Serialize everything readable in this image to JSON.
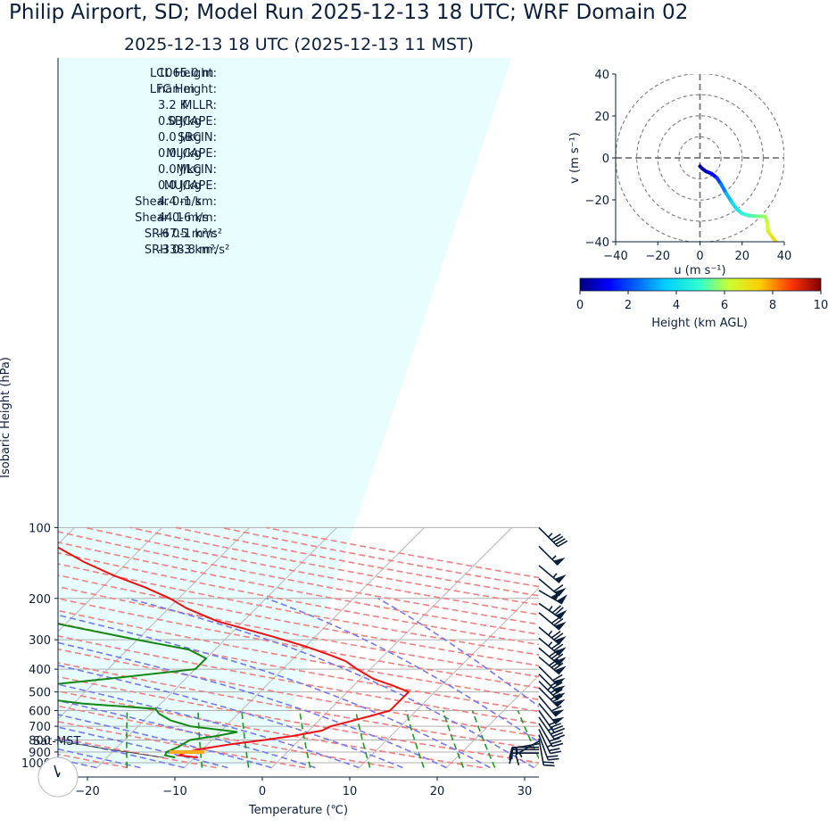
{
  "title": "Philip Airport, SD; Model Run 2025-12-13 18 UTC; WRF Domain 02",
  "subtitle": "2025-12-13 18 UTC  (2025-12-13 11 MST)",
  "xlabel": "Temperature (℃)",
  "ylabel": "Isobaric Height (hPa)",
  "stats": [
    {
      "label": "LCL Height:",
      "value": "1065.0 m"
    },
    {
      "label": "LFC Height:",
      "value": "nan m"
    },
    {
      "label": "MLLR:",
      "value": "3.2 K"
    },
    {
      "label": "SBCAPE:",
      "value": "0.0 J/kg"
    },
    {
      "label": "SBCIN:",
      "value": "0.0 J/kg"
    },
    {
      "label": "MLCAPE:",
      "value": "0.0 J/kg"
    },
    {
      "label": "MLCIN:",
      "value": "0.0 J/kg"
    },
    {
      "label": "MUCAPE:",
      "value": "0.0 J/kg"
    },
    {
      "label": "Shear 0-1 km:",
      "value": "4.4 m/s"
    },
    {
      "label": "Shear 0-6 km:",
      "value": "44.1 m/s"
    },
    {
      "label": "SRH 0-1 km:",
      "value": "-67.5 m²/s²"
    },
    {
      "label": "SRH 0-3 km:",
      "value": "-338.8 m²/s²"
    }
  ],
  "sat_label": "Sat-MST",
  "colors": {
    "temperature": "#ee1111",
    "dewpoint": "#118811",
    "dry_adiabat": "#f08080",
    "moist_adiabat": "#7777ee",
    "mixing_ratio": "#229922",
    "parcel": "#ffaa22",
    "barb": "#0b1f3a",
    "shade": "#e8fdfd"
  },
  "chart_data": [
    {
      "type": "skewt",
      "xlim": [
        -25,
        30
      ],
      "ylim": [
        1050,
        100
      ],
      "xticks": [
        -20,
        -10,
        0,
        10,
        20,
        30
      ],
      "pressure_ticks": [
        100,
        200,
        300,
        400,
        500,
        600,
        700,
        800,
        900,
        1000
      ],
      "temperature_profile": [
        {
          "p": 950,
          "t": -9.6
        },
        {
          "p": 930,
          "t": -12
        },
        {
          "p": 900,
          "t": -11.5
        },
        {
          "p": 870,
          "t": -10
        },
        {
          "p": 830,
          "t": -7
        },
        {
          "p": 800,
          "t": -4
        },
        {
          "p": 770,
          "t": -1.3
        },
        {
          "p": 730,
          "t": 1.5
        },
        {
          "p": 700,
          "t": 2
        },
        {
          "p": 670,
          "t": 3.5
        },
        {
          "p": 630,
          "t": 5.5
        },
        {
          "p": 600,
          "t": 7
        },
        {
          "p": 560,
          "t": 7
        },
        {
          "p": 500,
          "t": 7
        },
        {
          "p": 470,
          "t": 4.5
        },
        {
          "p": 440,
          "t": 1.5
        },
        {
          "p": 400,
          "t": -1.5
        },
        {
          "p": 370,
          "t": -3.7
        },
        {
          "p": 350,
          "t": -6
        },
        {
          "p": 320,
          "t": -10
        },
        {
          "p": 290,
          "t": -15
        },
        {
          "p": 250,
          "t": -23
        },
        {
          "p": 220,
          "t": -28
        },
        {
          "p": 200,
          "t": -31
        },
        {
          "p": 180,
          "t": -35
        },
        {
          "p": 160,
          "t": -40
        },
        {
          "p": 140,
          "t": -45
        },
        {
          "p": 120,
          "t": -50
        },
        {
          "p": 100,
          "t": -56
        }
      ],
      "dewpoint_profile": [
        {
          "p": 950,
          "td": -12.2
        },
        {
          "p": 930,
          "td": -13.6
        },
        {
          "p": 900,
          "td": -13.8
        },
        {
          "p": 860,
          "td": -13.1
        },
        {
          "p": 800,
          "td": -12.5
        },
        {
          "p": 770,
          "td": -10
        },
        {
          "p": 740,
          "td": -8
        },
        {
          "p": 700,
          "td": -14
        },
        {
          "p": 660,
          "td": -17
        },
        {
          "p": 620,
          "td": -19
        },
        {
          "p": 590,
          "td": -20
        },
        {
          "p": 560,
          "td": -29
        },
        {
          "p": 500,
          "td": -41
        },
        {
          "p": 480,
          "td": -38
        },
        {
          "p": 440,
          "td": -29
        },
        {
          "p": 400,
          "td": -20
        },
        {
          "p": 360,
          "td": -20
        },
        {
          "p": 330,
          "td": -23
        },
        {
          "p": 300,
          "td": -30
        },
        {
          "p": 260,
          "td": -40
        },
        {
          "p": 230,
          "td": -48
        },
        {
          "p": 200,
          "td": -57
        },
        {
          "p": 180,
          "td": -62
        },
        {
          "p": 160,
          "td": -64
        },
        {
          "p": 140,
          "td": -65
        },
        {
          "p": 120,
          "td": -66
        },
        {
          "p": 100,
          "td": -67
        }
      ],
      "parcel_marker": {
        "p": 900,
        "t1": -13.5,
        "t2": -9.5
      }
    },
    {
      "type": "hodograph",
      "xlabel": "u (m s⁻¹)",
      "ylabel": "v (m s⁻¹)",
      "xlim": [
        -40,
        40
      ],
      "ylim": [
        -40,
        40
      ],
      "xticks": [
        -40,
        -20,
        0,
        20,
        40
      ],
      "yticks": [
        -40,
        -20,
        0,
        20,
        40
      ],
      "rings": [
        10,
        20,
        30,
        40
      ],
      "points": [
        {
          "u": 0,
          "v": -4,
          "h": 0.05
        },
        {
          "u": 1.2,
          "v": -5.2,
          "h": 0.3
        },
        {
          "u": 3,
          "v": -6.5,
          "h": 0.6
        },
        {
          "u": 5.5,
          "v": -7.5,
          "h": 1.0
        },
        {
          "u": 8,
          "v": -9.5,
          "h": 1.5
        },
        {
          "u": 10,
          "v": -12.5,
          "h": 2.2
        },
        {
          "u": 12.5,
          "v": -17,
          "h": 3.0
        },
        {
          "u": 15,
          "v": -21,
          "h": 3.6
        },
        {
          "u": 17.5,
          "v": -24.5,
          "h": 4.2
        },
        {
          "u": 20,
          "v": -26.5,
          "h": 4.6
        },
        {
          "u": 23,
          "v": -27.5,
          "h": 5.0
        },
        {
          "u": 27,
          "v": -27.8,
          "h": 5.4
        },
        {
          "u": 31,
          "v": -28,
          "h": 5.8
        },
        {
          "u": 32,
          "v": -31,
          "h": 6.1
        },
        {
          "u": 32.3,
          "v": -35,
          "h": 6.5
        },
        {
          "u": 34.5,
          "v": -38,
          "h": 6.9
        },
        {
          "u": 36,
          "v": -40,
          "h": 7.2
        }
      ]
    },
    {
      "type": "colorbar",
      "label": "Height (km AGL)",
      "range": [
        0,
        10
      ],
      "ticks": [
        0,
        2,
        4,
        6,
        8,
        10
      ]
    }
  ],
  "wind_barbs": [
    {
      "p": 100,
      "spd": 45,
      "dir": 135
    },
    {
      "p": 120,
      "spd": 55,
      "dir": 135
    },
    {
      "p": 145,
      "spd": 55,
      "dir": 130
    },
    {
      "p": 165,
      "spd": 60,
      "dir": 130
    },
    {
      "p": 185,
      "spd": 100,
      "dir": 120
    },
    {
      "p": 210,
      "spd": 75,
      "dir": 125
    },
    {
      "p": 230,
      "spd": 70,
      "dir": 130
    },
    {
      "p": 265,
      "spd": 75,
      "dir": 130
    },
    {
      "p": 295,
      "spd": 75,
      "dir": 130
    },
    {
      "p": 325,
      "spd": 80,
      "dir": 130
    },
    {
      "p": 355,
      "spd": 80,
      "dir": 130
    },
    {
      "p": 390,
      "spd": 60,
      "dir": 135
    },
    {
      "p": 420,
      "spd": 70,
      "dir": 135
    },
    {
      "p": 450,
      "spd": 75,
      "dir": 135
    },
    {
      "p": 480,
      "spd": 70,
      "dir": 135
    },
    {
      "p": 520,
      "spd": 60,
      "dir": 140
    },
    {
      "p": 560,
      "spd": 50,
      "dir": 140
    },
    {
      "p": 600,
      "spd": 40,
      "dir": 145
    },
    {
      "p": 640,
      "spd": 35,
      "dir": 145
    },
    {
      "p": 680,
      "spd": 30,
      "dir": 150
    },
    {
      "p": 720,
      "spd": 25,
      "dir": 155
    },
    {
      "p": 760,
      "spd": 20,
      "dir": 160
    },
    {
      "p": 790,
      "spd": 20,
      "dir": 170
    },
    {
      "p": 810,
      "spd": 15,
      "dir": 240
    },
    {
      "p": 830,
      "spd": 15,
      "dir": 260
    },
    {
      "p": 860,
      "spd": 15,
      "dir": 270
    },
    {
      "p": 880,
      "spd": 10,
      "dir": 270
    },
    {
      "p": 910,
      "spd": 10,
      "dir": 270
    }
  ]
}
